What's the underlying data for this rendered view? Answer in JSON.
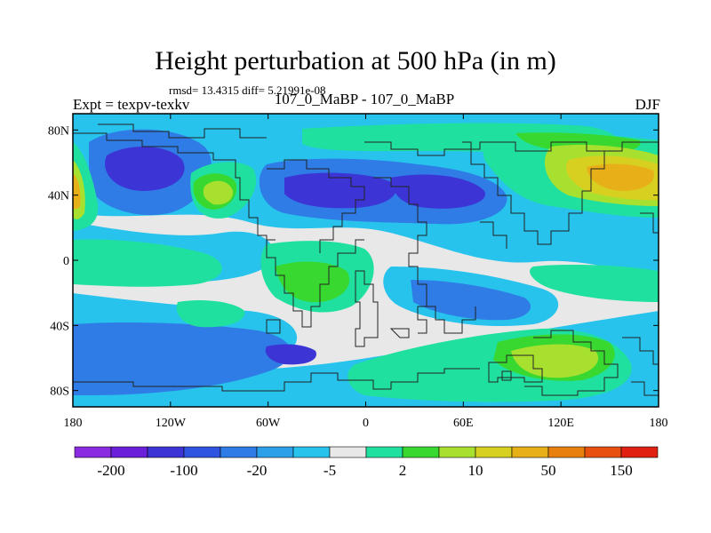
{
  "title": "Height perturbation at 500 hPa (in m)",
  "stats": "rmsd= 13.4315 diff= 5.21991e-08",
  "left_label": "Expt = texpv-texkv",
  "center_label": "107_0_MaBP - 107_0_MaBP",
  "right_label": "DJF",
  "lat_ticks": [
    {
      "value": 80,
      "label": "80N"
    },
    {
      "value": 40,
      "label": "40N"
    },
    {
      "value": 0,
      "label": "0"
    },
    {
      "value": -40,
      "label": "40S"
    },
    {
      "value": -80,
      "label": "80S"
    }
  ],
  "lon_ticks": [
    {
      "value": -180,
      "label": "180"
    },
    {
      "value": -120,
      "label": "120W"
    },
    {
      "value": -60,
      "label": "60W"
    },
    {
      "value": 0,
      "label": "0"
    },
    {
      "value": 60,
      "label": "60E"
    },
    {
      "value": 120,
      "label": "120E"
    },
    {
      "value": 180,
      "label": "180"
    }
  ],
  "colorbar": {
    "colors": [
      "#8a2be2",
      "#6a1fd8",
      "#3d34d6",
      "#2f55e0",
      "#2f7ce6",
      "#2ca1ea",
      "#27c3ec",
      "#e8e8e8",
      "#20e0a0",
      "#38d830",
      "#a8e030",
      "#d8d020",
      "#e8b018",
      "#e88010",
      "#e85010",
      "#e02010"
    ],
    "labels": [
      {
        "index": 1,
        "text": "-200"
      },
      {
        "index": 3,
        "text": "-100"
      },
      {
        "index": 5,
        "text": "-20"
      },
      {
        "index": 7,
        "text": "-5"
      },
      {
        "index": 9,
        "text": "2"
      },
      {
        "index": 11,
        "text": "10"
      },
      {
        "index": 13,
        "text": "50"
      },
      {
        "index": 15,
        "text": "150"
      }
    ]
  }
}
